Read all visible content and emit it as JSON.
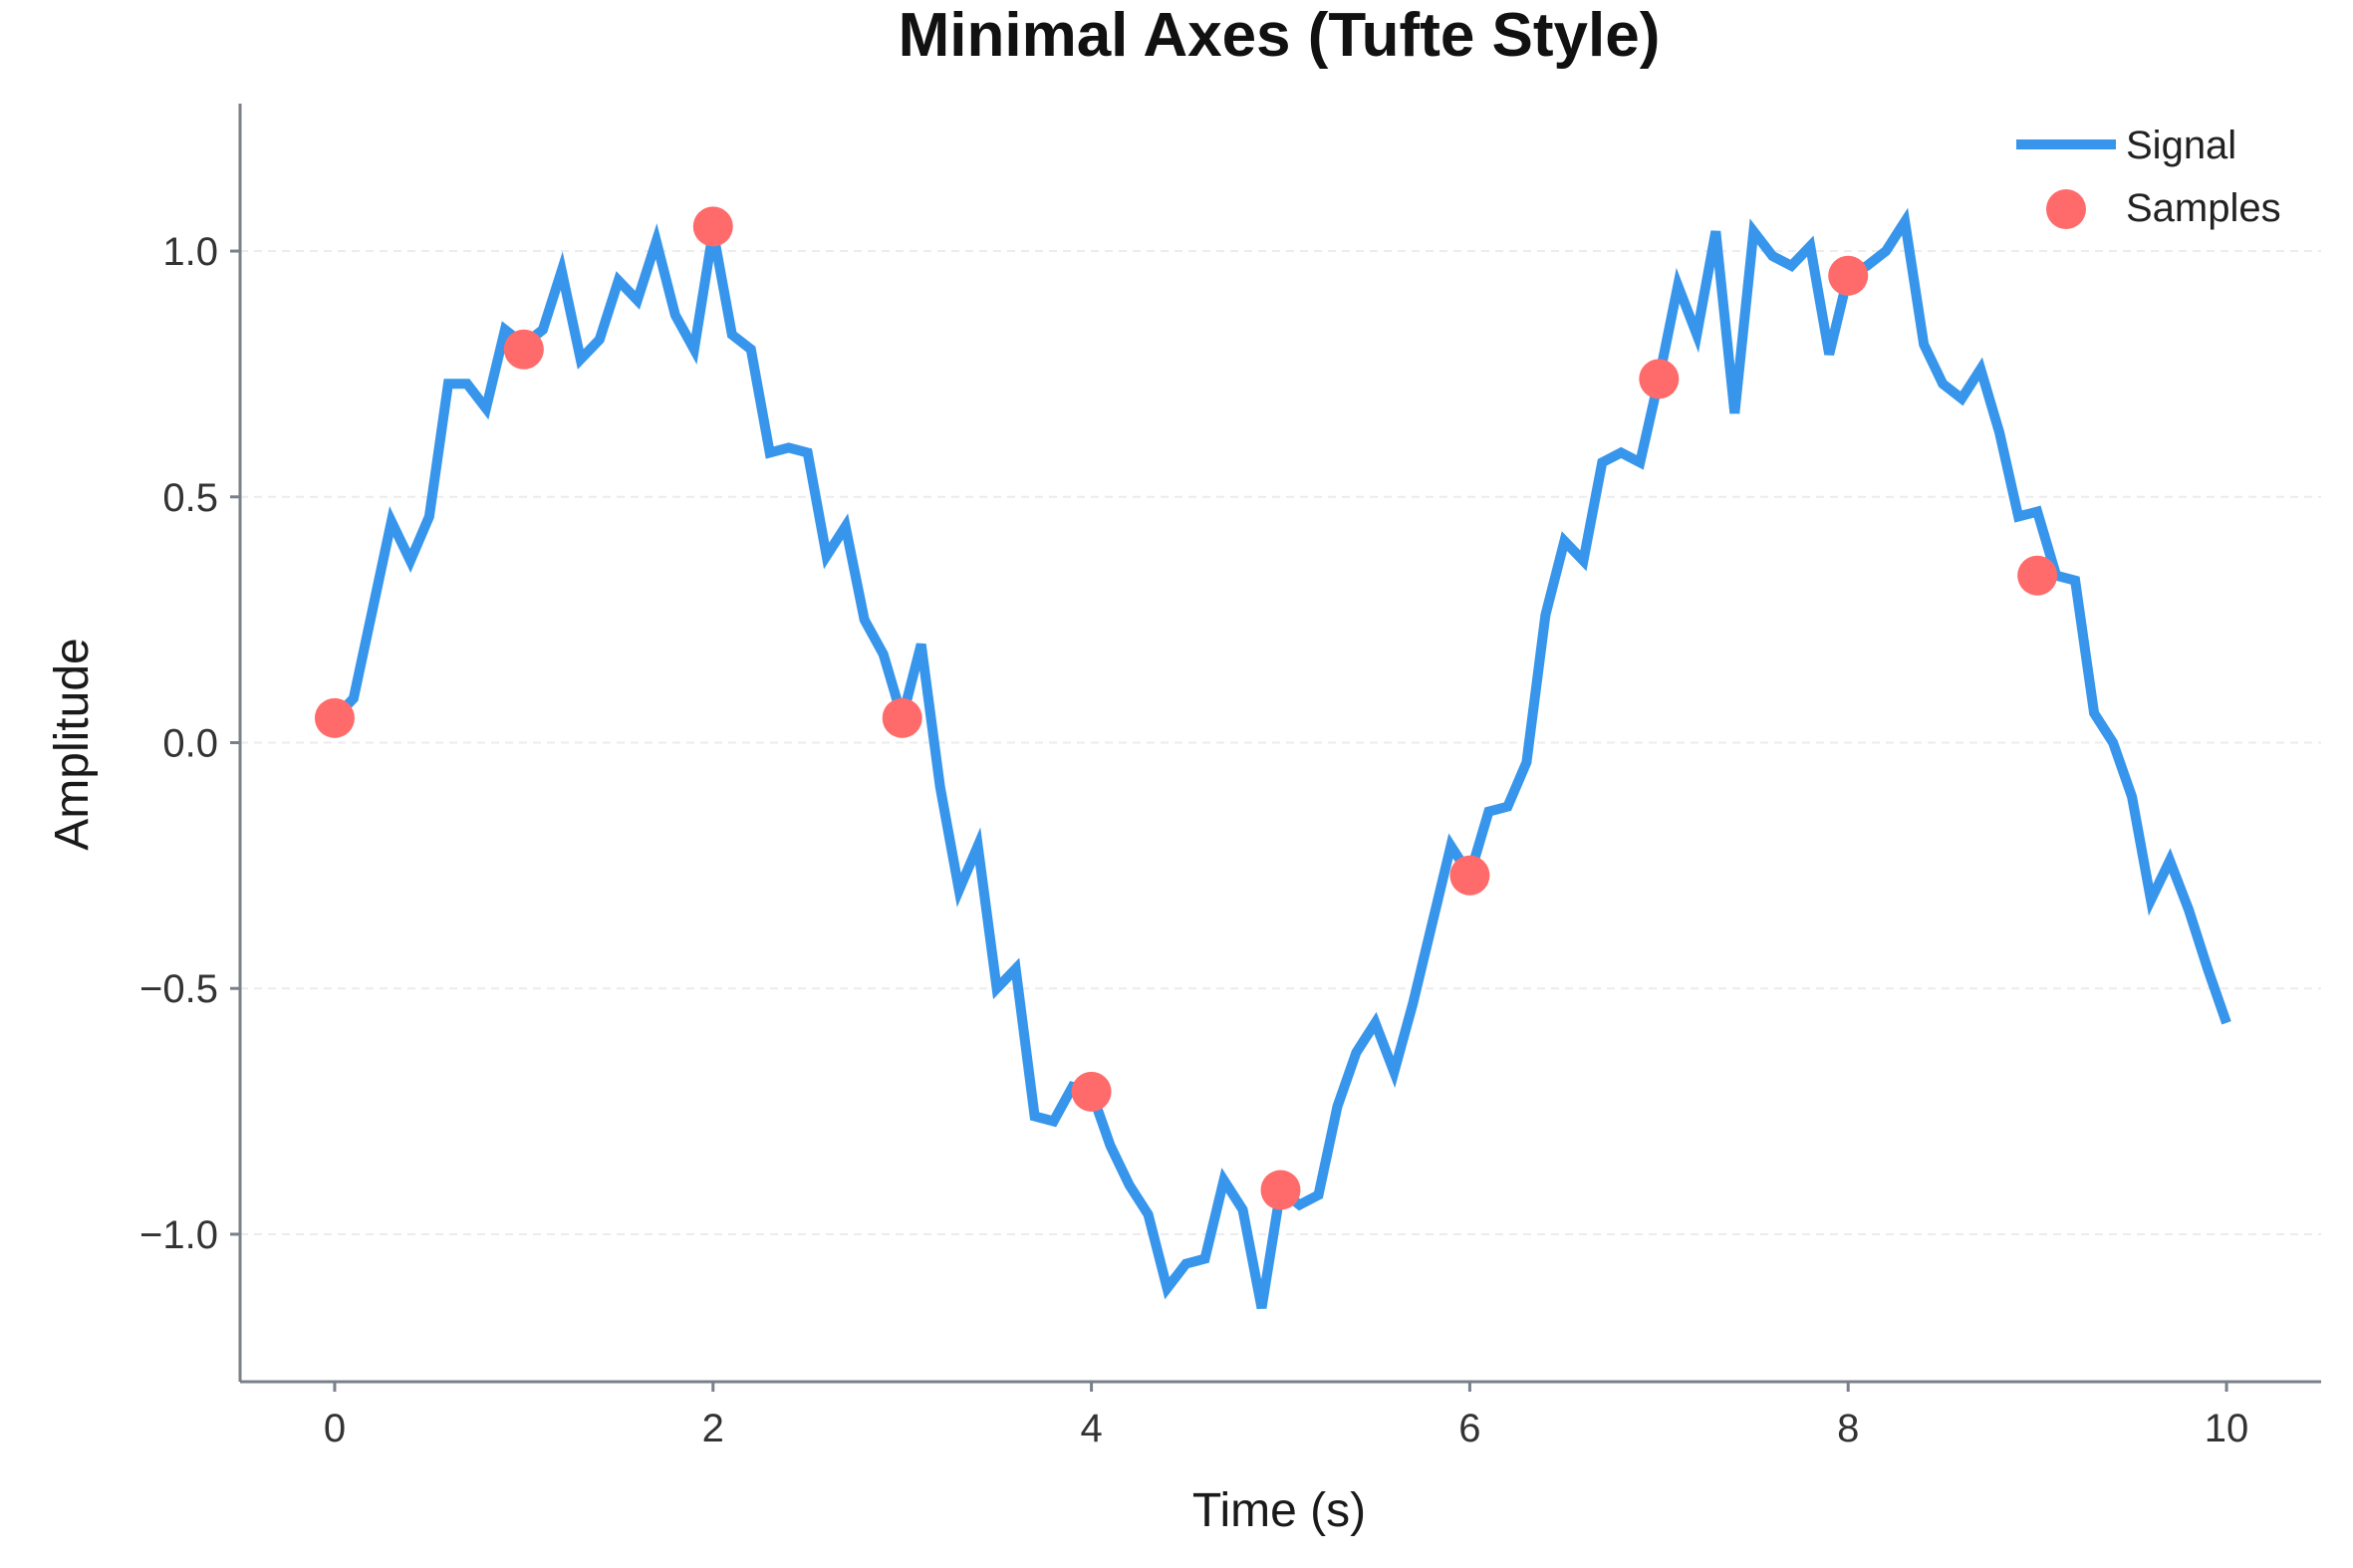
{
  "chart_data": {
    "type": "line",
    "title": "Minimal Axes (Tufte Style)",
    "xlabel": "Time (s)",
    "ylabel": "Amplitude",
    "xlim": [
      -0.5,
      10.5
    ],
    "ylim": [
      -1.3,
      1.3
    ],
    "x_ticks": [
      0,
      2,
      4,
      6,
      8,
      10
    ],
    "x_tick_labels": [
      "0",
      "2",
      "4",
      "6",
      "8",
      "10"
    ],
    "y_ticks": [
      1.0,
      0.5,
      0.0,
      -0.5,
      -1.0
    ],
    "y_tick_labels": [
      "1.0",
      "0.5",
      "0.0",
      "−0.5",
      "−1.0"
    ],
    "grid": "horizontal dashed, faint",
    "legend_position": "top-right",
    "series": [
      {
        "name": "Signal",
        "kind": "line",
        "color": "#3796eb",
        "x": [
          0.0,
          0.1,
          0.2,
          0.3,
          0.4,
          0.5,
          0.6,
          0.7,
          0.8,
          0.9,
          1.0,
          1.1,
          1.2,
          1.3,
          1.4,
          1.5,
          1.6,
          1.7,
          1.8,
          1.9,
          2.0,
          2.1,
          2.2,
          2.3,
          2.4,
          2.5,
          2.6,
          2.7,
          2.8,
          2.9,
          3.0,
          3.1,
          3.2,
          3.3,
          3.4,
          3.5,
          3.6,
          3.7,
          3.8,
          3.9,
          4.0,
          4.1,
          4.2,
          4.3,
          4.4,
          4.5,
          4.6,
          4.7,
          4.8,
          4.9,
          5.0,
          5.1,
          5.2,
          5.3,
          5.4,
          5.5,
          5.6,
          5.7,
          5.8,
          5.9,
          6.0,
          6.1,
          6.2,
          6.3,
          6.4,
          6.5,
          6.6,
          6.7,
          6.8,
          6.9,
          7.0,
          7.1,
          7.2,
          7.3,
          7.4,
          7.5,
          7.6,
          7.7,
          7.8,
          7.9,
          8.0,
          8.1,
          8.2,
          8.3,
          8.4,
          8.5,
          8.6,
          8.7,
          8.8,
          8.9,
          9.0,
          9.1,
          9.2,
          9.3,
          9.4,
          9.5,
          9.6,
          9.7,
          9.8,
          9.9,
          10.0
        ],
        "y": [
          0.05,
          0.09,
          0.27,
          0.45,
          0.37,
          0.46,
          0.73,
          0.73,
          0.68,
          0.84,
          0.81,
          0.84,
          0.96,
          0.78,
          0.82,
          0.94,
          0.9,
          1.02,
          0.87,
          0.8,
          1.04,
          0.83,
          0.8,
          0.59,
          0.6,
          0.59,
          0.38,
          0.44,
          0.25,
          0.18,
          0.05,
          0.2,
          -0.09,
          -0.3,
          -0.21,
          -0.5,
          -0.46,
          -0.76,
          -0.77,
          -0.7,
          -0.71,
          -0.82,
          -0.9,
          -0.96,
          -1.11,
          -1.06,
          -1.05,
          -0.89,
          -0.95,
          -1.15,
          -0.91,
          -0.94,
          -0.92,
          -0.74,
          -0.63,
          -0.57,
          -0.67,
          -0.53,
          -0.37,
          -0.21,
          -0.27,
          -0.14,
          -0.13,
          -0.04,
          0.26,
          0.41,
          0.37,
          0.57,
          0.59,
          0.57,
          0.74,
          0.93,
          0.83,
          1.04,
          0.67,
          1.04,
          0.99,
          0.97,
          1.01,
          0.79,
          0.95,
          0.97,
          1.0,
          1.06,
          0.81,
          0.73,
          0.7,
          0.76,
          0.63,
          0.46,
          0.47,
          0.34,
          0.33,
          0.06,
          0.0,
          -0.11,
          -0.32,
          -0.24,
          -0.34,
          -0.46,
          -0.57
        ]
      },
      {
        "name": "Samples",
        "kind": "scatter",
        "color": "#ff6b6b",
        "x": [
          0.0,
          1.0,
          2.0,
          3.0,
          4.0,
          5.0,
          6.0,
          7.0,
          8.0,
          9.0
        ],
        "y": [
          0.05,
          0.8,
          1.05,
          0.05,
          -0.71,
          -0.91,
          -0.27,
          0.74,
          0.95,
          0.34
        ]
      }
    ]
  }
}
